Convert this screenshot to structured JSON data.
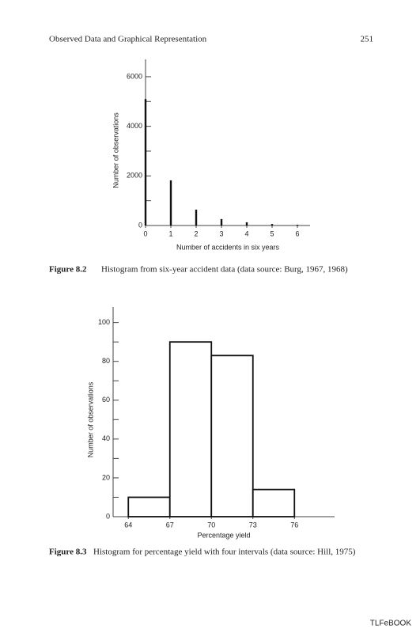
{
  "header": {
    "title": "Observed Data and Graphical Representation",
    "page_number": "251"
  },
  "chart_data": [
    {
      "type": "spike",
      "figure_label": "Figure 8.2",
      "caption": "Histogram from six-year accident data (data source: Burg, 1967, 1968)",
      "xlabel": "Number of accidents in six years",
      "ylabel": "Number of observations",
      "x": [
        0,
        1,
        2,
        3,
        4,
        5,
        6
      ],
      "values": [
        5100,
        1820,
        640,
        260,
        130,
        60,
        30
      ],
      "color": "#111111",
      "xlim": [
        0,
        6.5
      ],
      "xticks": [
        0,
        1,
        2,
        3,
        4,
        5,
        6
      ],
      "ylim": [
        0,
        6700
      ],
      "yticks": [
        0,
        2000,
        4000,
        6000
      ],
      "minor_yticks": [
        1000,
        3000,
        5000
      ]
    },
    {
      "type": "histogram",
      "figure_label": "Figure 8.3",
      "caption": "Histogram for percentage yield with four intervals (data source: Hill, 1975)",
      "xlabel": "Percentage yield",
      "ylabel": "Number of observations",
      "bins": [
        64,
        67,
        70,
        73,
        76
      ],
      "values": [
        10,
        90,
        83,
        14
      ],
      "color": "#111111",
      "xlim": [
        62.9,
        78.9
      ],
      "xticks": [
        64,
        67,
        70,
        73,
        76
      ],
      "ylim": [
        0,
        108
      ],
      "yticks": [
        0,
        20,
        40,
        60,
        80,
        100
      ],
      "minor_yticks": [
        10,
        30,
        50,
        70,
        90
      ]
    }
  ],
  "footer": "TLFeBOOK"
}
